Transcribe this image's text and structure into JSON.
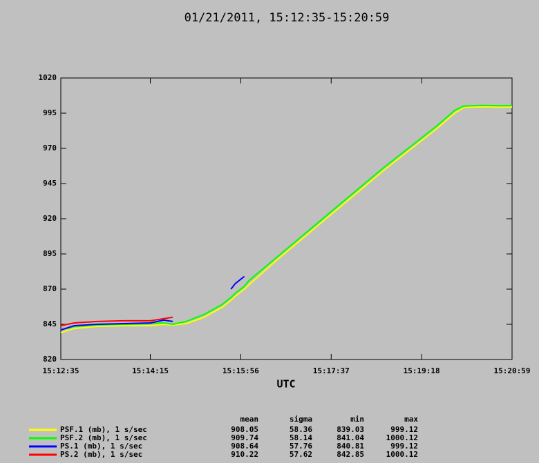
{
  "chart_data": {
    "type": "line",
    "title": "01/21/2011, 15:12:35-15:20:59",
    "xlabel": "UTC",
    "x": [
      "15:12:35",
      "15:12:50",
      "15:13:15",
      "15:13:45",
      "15:14:15",
      "15:14:30",
      "15:14:40",
      "15:14:55",
      "15:15:15",
      "15:15:35",
      "15:15:45",
      "15:15:50",
      "15:16:00",
      "15:16:05",
      "15:16:35",
      "15:17:05",
      "15:17:35",
      "15:18:05",
      "15:18:35",
      "15:19:05",
      "15:19:35",
      "15:19:55",
      "15:20:05",
      "15:20:25",
      "15:20:45",
      "15:20:59"
    ],
    "xlim": [
      "15:12:35",
      "15:20:59"
    ],
    "xticks": [
      "15:12:35",
      "15:14:15",
      "15:15:56",
      "15:17:37",
      "15:19:18",
      "15:20:59"
    ],
    "ylim": [
      820,
      1020
    ],
    "yticks": [
      820,
      845,
      870,
      895,
      920,
      945,
      970,
      995,
      1020
    ],
    "grid": false,
    "series": [
      {
        "name": "PSF.1 (mb), 1 s/sec",
        "color": "#ffff00",
        "values": [
          839,
          842,
          843.5,
          844,
          844,
          845,
          844.5,
          845.5,
          850,
          857,
          862,
          865,
          870,
          873,
          890,
          906,
          922,
          938,
          954,
          969,
          984,
          995,
          999,
          999.5,
          999.3,
          999.3
        ]
      },
      {
        "name": "PSF.2 (mb), 1 s/sec",
        "color": "#00ff00",
        "values": [
          841,
          843.5,
          844.5,
          845,
          845.5,
          846,
          845,
          847,
          852,
          859,
          864,
          867,
          872,
          876,
          892,
          908,
          924,
          940,
          956,
          971,
          986,
          997,
          1000,
          1000.5,
          1000.3,
          1000.4
        ]
      },
      {
        "name": "PS.1 (mb), 1 s/sec",
        "color": "#0000ff",
        "values": [
          841,
          844,
          845,
          845.5,
          846,
          848,
          847,
          null,
          null,
          null,
          870,
          874,
          879,
          null,
          null,
          null,
          null,
          null,
          null,
          null,
          null,
          null,
          null,
          null,
          null,
          null
        ]
      },
      {
        "name": "PS.2 (mb), 1 s/sec",
        "color": "#ff0000",
        "values": [
          844,
          846,
          847,
          847.5,
          847.5,
          849,
          850,
          null,
          null,
          null,
          null,
          null,
          null,
          null,
          null,
          null,
          null,
          null,
          null,
          null,
          null,
          null,
          null,
          null,
          null,
          null
        ]
      }
    ],
    "stats": {
      "columns": [
        "mean",
        "sigma",
        "min",
        "max"
      ],
      "rows": [
        [
          908.05,
          58.36,
          839.03,
          999.12
        ],
        [
          909.74,
          58.14,
          841.04,
          1000.12
        ],
        [
          908.64,
          57.76,
          840.81,
          999.12
        ],
        [
          910.22,
          57.62,
          842.85,
          1000.12
        ]
      ]
    }
  }
}
